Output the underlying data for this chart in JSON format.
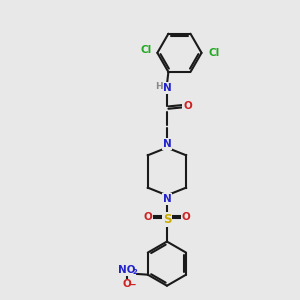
{
  "bg_color": "#e8e8e8",
  "bond_color": "#1a1a1a",
  "n_color": "#2222cc",
  "o_color": "#cc2222",
  "s_color": "#ccaa00",
  "cl_color": "#22aa22",
  "h_color": "#888888",
  "figsize": [
    3.0,
    3.0
  ],
  "dpi": 100,
  "bond_lw": 1.5,
  "font_size": 7.5,
  "hex_r": 0.75,
  "xlim": [
    0,
    10
  ],
  "ylim": [
    0,
    10
  ]
}
